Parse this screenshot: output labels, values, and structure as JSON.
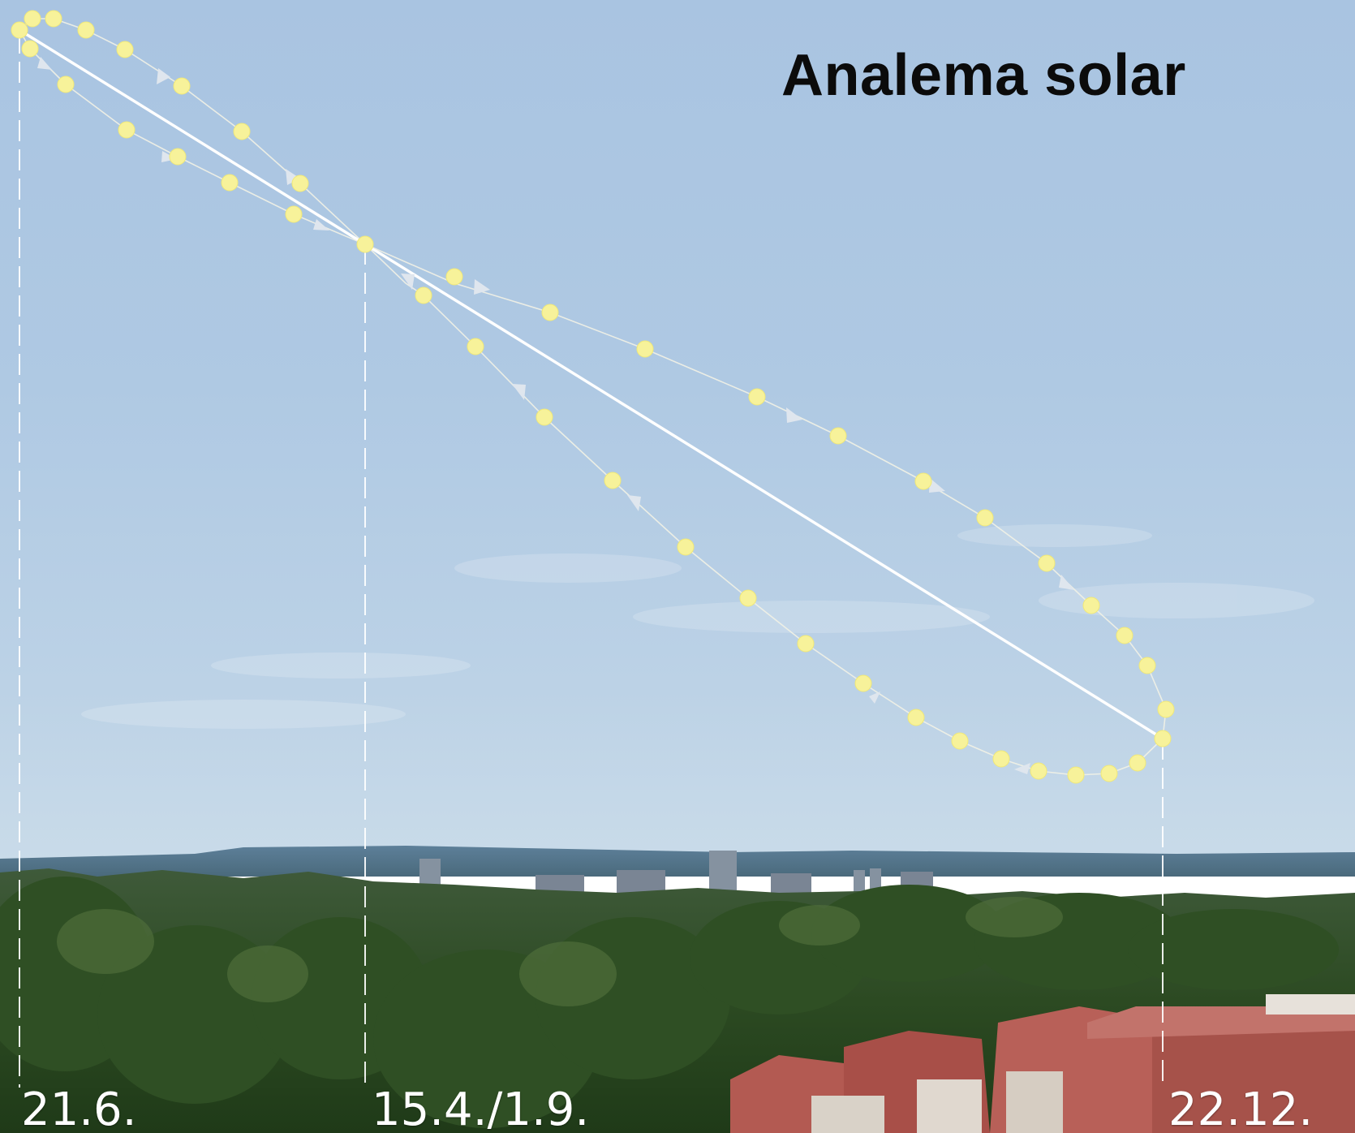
{
  "title": "Analema solar",
  "dates": {
    "summer_solstice": "21.6.",
    "equal_time": "15.4./1.9.",
    "winter_solstice": "22.12."
  },
  "colors": {
    "sun_marker": "#f7f29a",
    "path_line": "#ffffff",
    "sky": "#afc9e3"
  }
}
